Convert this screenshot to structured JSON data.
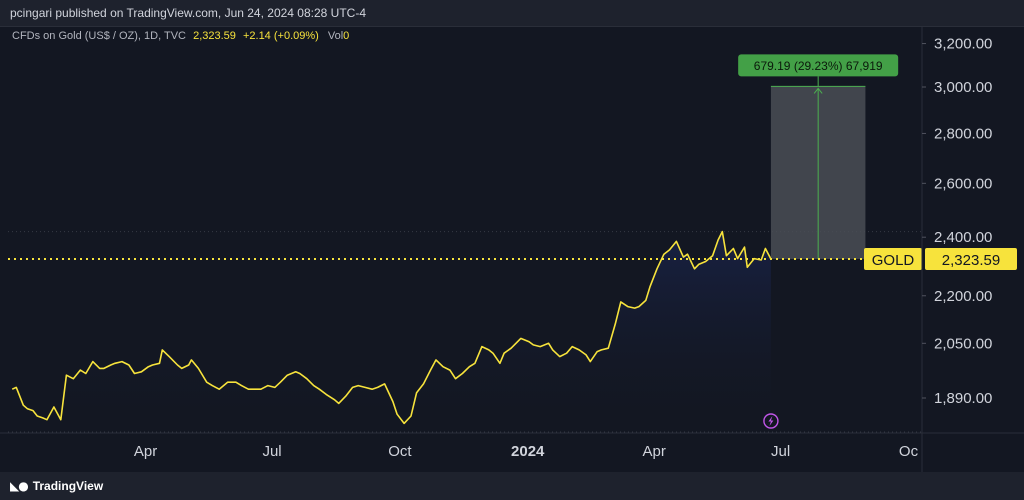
{
  "header": {
    "publisher": "pcingari published on TradingView.com, Jun 24, 2024 08:28 UTC-4"
  },
  "legend": {
    "symbol": "CFDs on Gold (US$ / OZ), 1D, TVC",
    "last": "2,323.59",
    "change": "+2.14 (+0.09%)",
    "vol_label": "Vol",
    "vol_value": "0"
  },
  "footer": {
    "brand": "TradingView"
  },
  "chart_data": {
    "type": "line",
    "series": [
      {
        "name": "GOLD",
        "points": [
          [
            "2022-12-26",
            1915
          ],
          [
            "2022-12-29",
            1920
          ],
          [
            "2023-01-03",
            1870
          ],
          [
            "2023-01-06",
            1860
          ],
          [
            "2023-01-10",
            1855
          ],
          [
            "2023-01-13",
            1840
          ],
          [
            "2023-01-17",
            1835
          ],
          [
            "2023-01-20",
            1830
          ],
          [
            "2023-01-25",
            1865
          ],
          [
            "2023-01-30",
            1830
          ],
          [
            "2023-02-03",
            1955
          ],
          [
            "2023-02-08",
            1945
          ],
          [
            "2023-02-13",
            1970
          ],
          [
            "2023-02-17",
            1960
          ],
          [
            "2023-02-22",
            1995
          ],
          [
            "2023-02-27",
            1975
          ],
          [
            "2023-03-02",
            1975
          ],
          [
            "2023-03-07",
            1985
          ],
          [
            "2023-03-10",
            1990
          ],
          [
            "2023-03-15",
            1995
          ],
          [
            "2023-03-20",
            1985
          ],
          [
            "2023-03-24",
            1960
          ],
          [
            "2023-03-29",
            1965
          ],
          [
            "2023-04-03",
            1980
          ],
          [
            "2023-04-06",
            1985
          ],
          [
            "2023-04-11",
            1990
          ],
          [
            "2023-04-13",
            2030
          ],
          [
            "2023-04-18",
            2010
          ],
          [
            "2023-04-24",
            1985
          ],
          [
            "2023-04-27",
            1975
          ],
          [
            "2023-05-02",
            1985
          ],
          [
            "2023-05-04",
            2000
          ],
          [
            "2023-05-09",
            1975
          ],
          [
            "2023-05-15",
            1935
          ],
          [
            "2023-05-19",
            1925
          ],
          [
            "2023-05-24",
            1915
          ],
          [
            "2023-05-30",
            1935
          ],
          [
            "2023-06-05",
            1935
          ],
          [
            "2023-06-09",
            1925
          ],
          [
            "2023-06-14",
            1915
          ],
          [
            "2023-06-20",
            1915
          ],
          [
            "2023-06-23",
            1915
          ],
          [
            "2023-06-28",
            1925
          ],
          [
            "2023-07-03",
            1920
          ],
          [
            "2023-07-07",
            1935
          ],
          [
            "2023-07-12",
            1955
          ],
          [
            "2023-07-18",
            1965
          ],
          [
            "2023-07-21",
            1960
          ],
          [
            "2023-07-26",
            1945
          ],
          [
            "2023-07-31",
            1925
          ],
          [
            "2023-08-04",
            1915
          ],
          [
            "2023-08-09",
            1900
          ],
          [
            "2023-08-15",
            1885
          ],
          [
            "2023-08-18",
            1875
          ],
          [
            "2023-08-23",
            1895
          ],
          [
            "2023-08-28",
            1920
          ],
          [
            "2023-09-01",
            1925
          ],
          [
            "2023-09-06",
            1920
          ],
          [
            "2023-09-11",
            1915
          ],
          [
            "2023-09-15",
            1920
          ],
          [
            "2023-09-20",
            1930
          ],
          [
            "2023-09-26",
            1880
          ],
          [
            "2023-09-29",
            1845
          ],
          [
            "2023-10-04",
            1820
          ],
          [
            "2023-10-09",
            1840
          ],
          [
            "2023-10-13",
            1905
          ],
          [
            "2023-10-18",
            1930
          ],
          [
            "2023-10-23",
            1970
          ],
          [
            "2023-10-27",
            2000
          ],
          [
            "2023-11-01",
            1980
          ],
          [
            "2023-11-06",
            1970
          ],
          [
            "2023-11-10",
            1945
          ],
          [
            "2023-11-15",
            1960
          ],
          [
            "2023-11-20",
            1980
          ],
          [
            "2023-11-24",
            1990
          ],
          [
            "2023-11-29",
            2040
          ],
          [
            "2023-12-04",
            2030
          ],
          [
            "2023-12-07",
            2020
          ],
          [
            "2023-12-12",
            1990
          ],
          [
            "2023-12-15",
            2020
          ],
          [
            "2023-12-20",
            2035
          ],
          [
            "2023-12-27",
            2065
          ],
          [
            "2024-01-02",
            2055
          ],
          [
            "2024-01-05",
            2045
          ],
          [
            "2024-01-10",
            2040
          ],
          [
            "2024-01-16",
            2050
          ],
          [
            "2024-01-19",
            2030
          ],
          [
            "2024-01-24",
            2010
          ],
          [
            "2024-01-29",
            2020
          ],
          [
            "2024-02-02",
            2040
          ],
          [
            "2024-02-07",
            2030
          ],
          [
            "2024-02-12",
            2015
          ],
          [
            "2024-02-15",
            1995
          ],
          [
            "2024-02-20",
            2025
          ],
          [
            "2024-02-23",
            2030
          ],
          [
            "2024-02-28",
            2035
          ],
          [
            "2024-03-04",
            2110
          ],
          [
            "2024-03-08",
            2180
          ],
          [
            "2024-03-13",
            2165
          ],
          [
            "2024-03-18",
            2160
          ],
          [
            "2024-03-21",
            2165
          ],
          [
            "2024-03-26",
            2185
          ],
          [
            "2024-03-29",
            2230
          ],
          [
            "2024-04-03",
            2290
          ],
          [
            "2024-04-08",
            2340
          ],
          [
            "2024-04-12",
            2355
          ],
          [
            "2024-04-17",
            2385
          ],
          [
            "2024-04-22",
            2330
          ],
          [
            "2024-04-25",
            2340
          ],
          [
            "2024-04-30",
            2290
          ],
          [
            "2024-05-03",
            2305
          ],
          [
            "2024-05-08",
            2315
          ],
          [
            "2024-05-13",
            2335
          ],
          [
            "2024-05-17",
            2390
          ],
          [
            "2024-05-20",
            2420
          ],
          [
            "2024-05-23",
            2335
          ],
          [
            "2024-05-28",
            2360
          ],
          [
            "2024-05-31",
            2325
          ],
          [
            "2024-06-05",
            2365
          ],
          [
            "2024-06-07",
            2295
          ],
          [
            "2024-06-12",
            2325
          ],
          [
            "2024-06-17",
            2320
          ],
          [
            "2024-06-20",
            2360
          ],
          [
            "2024-06-24",
            2323.59
          ]
        ]
      }
    ],
    "last_value": 2323.59,
    "last_label": "GOLD",
    "last_value_label": "2,323.59",
    "projection": {
      "start_date": "2024-06-24",
      "end_date": "2024-08-31",
      "from": 2323.59,
      "to": 3002.78,
      "label": "679.19 (29.23%) 67,919"
    },
    "y_ticks": [
      {
        "value": 1890,
        "label": "1,890.00"
      },
      {
        "value": 2050,
        "label": "2,050.00"
      },
      {
        "value": 2200,
        "label": "2,200.00"
      },
      {
        "value": 2400,
        "label": "2,400.00"
      },
      {
        "value": 2600,
        "label": "2,600.00"
      },
      {
        "value": 2800,
        "label": "2,800.00"
      },
      {
        "value": 3000,
        "label": "3,000.00"
      },
      {
        "value": 3200,
        "label": "3,200.00"
      }
    ],
    "x_ticks": [
      {
        "date": "2023-04-01",
        "label": "Apr",
        "bold": false
      },
      {
        "date": "2023-07-01",
        "label": "Jul",
        "bold": false
      },
      {
        "date": "2023-10-01",
        "label": "Oct",
        "bold": false
      },
      {
        "date": "2024-01-01",
        "label": "2024",
        "bold": true
      },
      {
        "date": "2024-04-01",
        "label": "Apr",
        "bold": false
      },
      {
        "date": "2024-07-01",
        "label": "Jul",
        "bold": false
      },
      {
        "date": "2024-10-01",
        "label": "Oc",
        "bold": false
      }
    ],
    "x_range": [
      "2022-12-23",
      "2024-10-10"
    ],
    "y_scale": "log",
    "grid": false,
    "colors": {
      "line": "#f7e33c",
      "area_top": "#1a2550",
      "background": "#131722",
      "projection_fill": "#4a4d55",
      "projection_line": "#4caf50",
      "projection_label_bg": "#43a047",
      "last_label_bg": "#f7e33c"
    }
  }
}
